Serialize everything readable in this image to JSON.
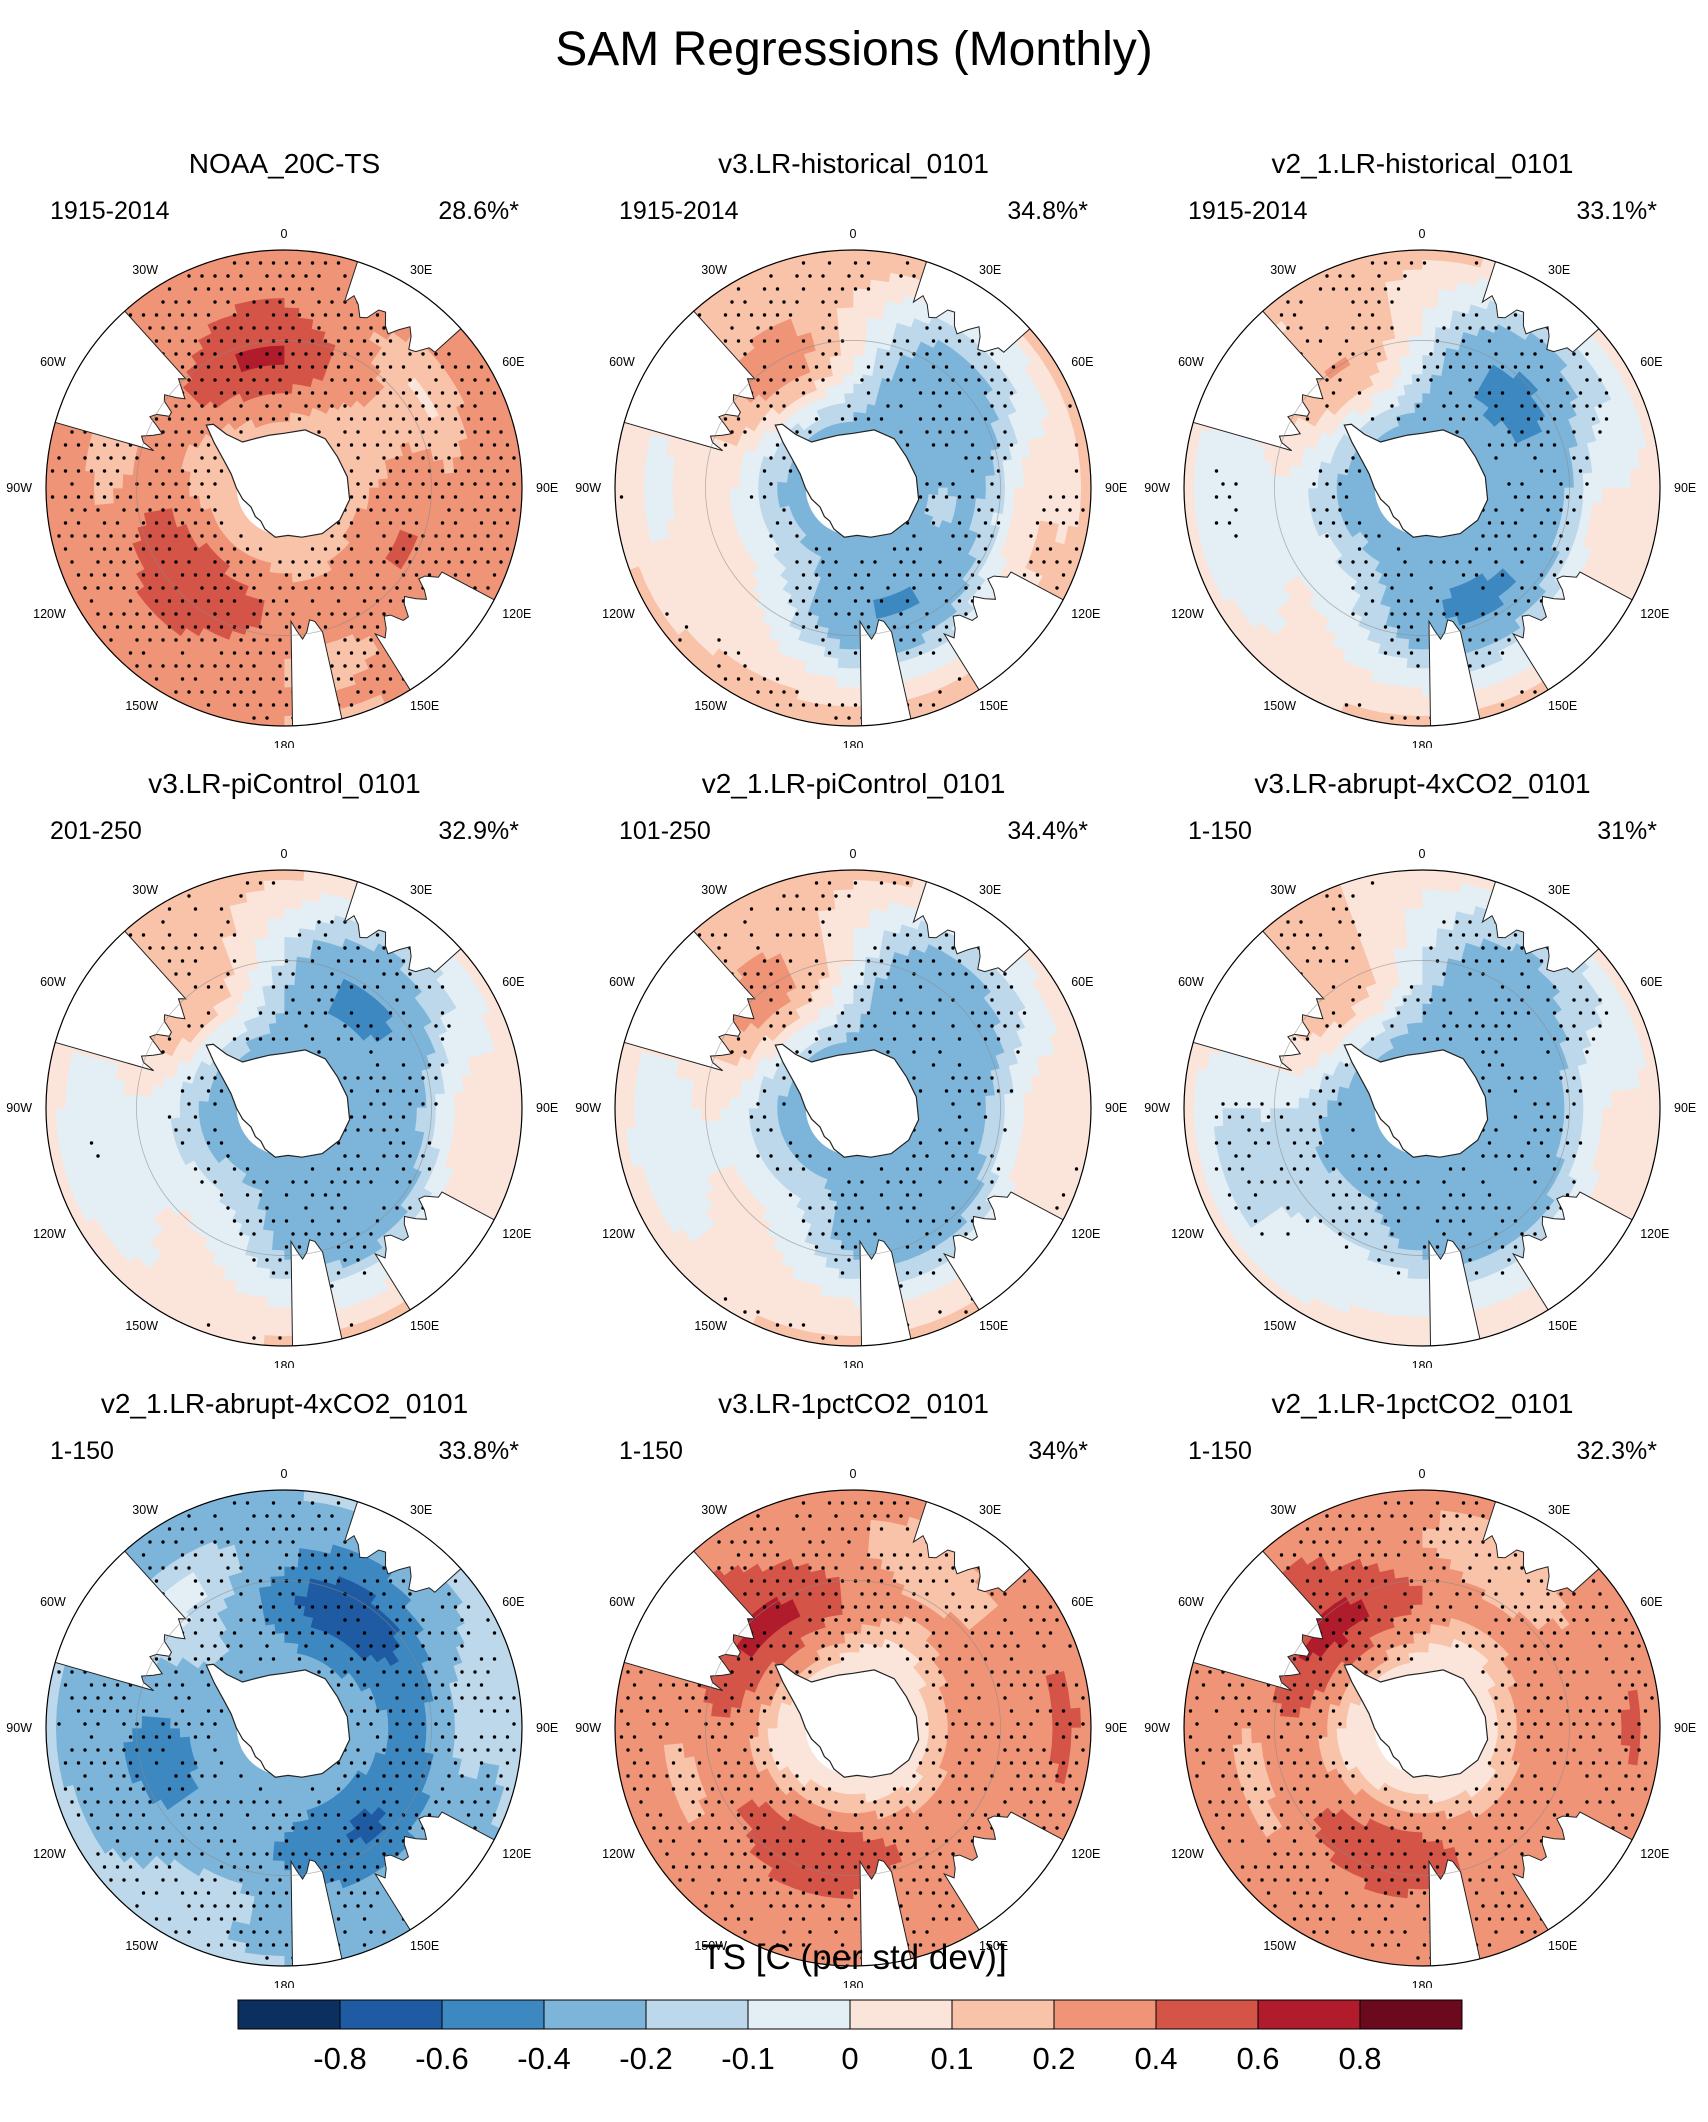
{
  "title": "SAM Regressions (Monthly)",
  "colors": {
    "stipple": "#000000",
    "land": "#ffffff",
    "coast": "#222222",
    "contour": "#888888"
  },
  "chart_data": {
    "type": "heatmap",
    "projection": "south-polar-stereographic",
    "variable": "TS",
    "colorbar": {
      "title": "TS [C (per std dev)]",
      "ticks": [
        "-0.8",
        "-0.6",
        "-0.4",
        "-0.2",
        "-0.1",
        "0",
        "0.1",
        "0.2",
        "0.4",
        "0.6",
        "0.8"
      ],
      "colors": [
        "#0b2f5e",
        "#1f5ba3",
        "#3d88c1",
        "#7db5da",
        "#bcd8ea",
        "#e4eef5",
        "#fbe5da",
        "#f9c3aa",
        "#ef9477",
        "#d45548",
        "#b01c2b",
        "#6b0a1e"
      ]
    },
    "longitude_labels": [
      "0",
      "30E",
      "60E",
      "90E",
      "120E",
      "150E",
      "180",
      "150W",
      "120W",
      "90W",
      "60W",
      "30W"
    ],
    "panels": [
      {
        "title": "NOAA_20C-TS",
        "period": "1915-2014",
        "variance": "28.6%*",
        "ring_inner": 0.2,
        "ring_outer": 0.18,
        "ring_phase": 0,
        "wave_amp": 0.15,
        "wave_phase": 30,
        "mid_base": 0.28,
        "mid_amp": 0.08,
        "mid_phase": 90,
        "outer_base": 0.18,
        "outer_amp": 0.06,
        "outer_phase": 200,
        "stipple_density": 0.85
      },
      {
        "title": "v3.LR-historical_0101",
        "period": "1915-2014",
        "variance": "34.8%*",
        "ring_inner": -0.4,
        "ring_outer": 0.3,
        "ring_phase": 120,
        "wave_amp": 0.12,
        "wave_phase": 60,
        "mid_base": -0.05,
        "mid_amp": 0.25,
        "mid_phase": 60,
        "outer_base": -0.05,
        "outer_amp": 0.05,
        "outer_phase": 0,
        "stipple_density": 0.65
      },
      {
        "title": "v2_1.LR-historical_0101",
        "period": "1915-2014",
        "variance": "33.1%*",
        "ring_inner": -0.45,
        "ring_outer": 0.25,
        "ring_phase": 110,
        "wave_amp": 0.12,
        "wave_phase": 70,
        "mid_base": -0.08,
        "mid_amp": 0.25,
        "mid_phase": 70,
        "outer_base": -0.08,
        "outer_amp": 0.06,
        "outer_phase": 20,
        "stipple_density": 0.62
      },
      {
        "title": "v3.LR-piControl_0101",
        "period": "201-250",
        "variance": "32.9%*",
        "ring_inner": -0.45,
        "ring_outer": 0.2,
        "ring_phase": 120,
        "wave_amp": 0.12,
        "wave_phase": 90,
        "mid_base": -0.05,
        "mid_amp": 0.22,
        "mid_phase": 80,
        "outer_base": -0.04,
        "outer_amp": 0.05,
        "outer_phase": 40,
        "stipple_density": 0.6
      },
      {
        "title": "v2_1.LR-piControl_0101",
        "period": "101-250",
        "variance": "34.4%*",
        "ring_inner": -0.4,
        "ring_outer": 0.22,
        "ring_phase": 110,
        "wave_amp": 0.12,
        "wave_phase": 80,
        "mid_base": -0.04,
        "mid_amp": 0.24,
        "mid_phase": 70,
        "outer_base": -0.04,
        "outer_amp": 0.05,
        "outer_phase": 30,
        "stipple_density": 0.62
      },
      {
        "title": "v3.LR-abrupt-4xCO2_0101",
        "period": "1-150",
        "variance": "31%*",
        "ring_inner": -0.45,
        "ring_outer": 0.18,
        "ring_phase": 100,
        "wave_amp": 0.1,
        "wave_phase": 100,
        "mid_base": -0.06,
        "mid_amp": 0.18,
        "mid_phase": 60,
        "outer_base": -0.06,
        "outer_amp": 0.05,
        "outer_phase": 60,
        "stipple_density": 0.6
      },
      {
        "title": "v2_1.LR-abrupt-4xCO2_0101",
        "period": "1-150",
        "variance": "33.8%*",
        "ring_inner": -0.5,
        "ring_outer": -0.1,
        "ring_phase": 100,
        "wave_amp": 0.15,
        "wave_phase": 110,
        "mid_base": -0.25,
        "mid_amp": 0.15,
        "mid_phase": 90,
        "outer_base": -0.15,
        "outer_amp": 0.08,
        "outer_phase": 250,
        "stipple_density": 0.7
      },
      {
        "title": "v3.LR-1pctCO2_0101",
        "period": "1-150",
        "variance": "34%*",
        "ring_inner": 0.05,
        "ring_outer": 0.3,
        "ring_phase": 60,
        "wave_amp": 0.12,
        "wave_phase": 120,
        "mid_base": 0.32,
        "mid_amp": 0.1,
        "mid_phase": 100,
        "outer_base": 0.15,
        "outer_amp": 0.08,
        "outer_phase": 180,
        "stipple_density": 0.75
      },
      {
        "title": "v2_1.LR-1pctCO2_0101",
        "period": "1-150",
        "variance": "32.3%*",
        "ring_inner": 0.05,
        "ring_outer": 0.28,
        "ring_phase": 60,
        "wave_amp": 0.12,
        "wave_phase": 120,
        "mid_base": 0.32,
        "mid_amp": 0.1,
        "mid_phase": 90,
        "outer_base": 0.15,
        "outer_amp": 0.08,
        "outer_phase": 170,
        "stipple_density": 0.75
      }
    ]
  }
}
